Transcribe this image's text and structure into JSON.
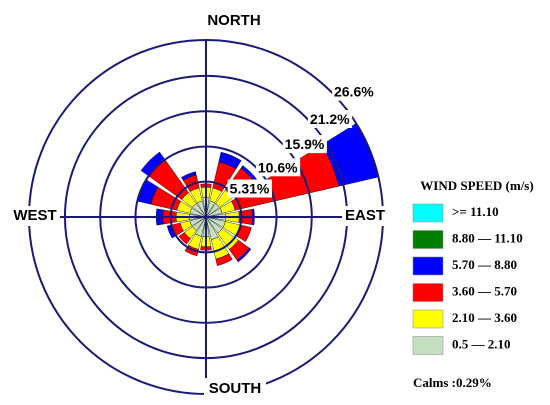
{
  "chart_data": {
    "type": "windrose",
    "legend_title": "WIND SPEED (m/s)",
    "direction_labels": {
      "north": "NORTH",
      "east": "EAST",
      "south": "SOUTH",
      "west": "WEST"
    },
    "categories": [
      null,
      null,
      null,
      null,
      null,
      null,
      null,
      null,
      null,
      null,
      null,
      null,
      null,
      null,
      null,
      null
    ],
    "series": [
      {
        "name": "0.5 — 2.10",
        "color": "#c6dfc3",
        "values": [
          3,
          2.5,
          2.5,
          2.5,
          3,
          3,
          3,
          3.5,
          3,
          3,
          2.5,
          2.5,
          2.5,
          2.5,
          2.5,
          2.5
        ]
      },
      {
        "name": "2.10 — 3.60",
        "color": "#ffff00",
        "values": [
          1.5,
          2,
          2.5,
          2,
          2,
          2.5,
          3,
          3,
          1.5,
          2,
          1.5,
          1.5,
          2,
          2,
          2,
          2
        ]
      },
      {
        "name": "3.60 — 5.70",
        "color": "#ff0000",
        "values": [
          0.5,
          4,
          4,
          16,
          2,
          1.5,
          2,
          1,
          0.5,
          1,
          1,
          1.5,
          2,
          4,
          6,
          2
        ]
      },
      {
        "name": "5.70 — 8.80",
        "color": "#0000ff",
        "values": [
          0,
          1.5,
          0.5,
          6,
          0.3,
          0,
          0.3,
          0,
          0,
          0,
          0,
          0.5,
          1,
          2,
          1.5,
          0.5
        ]
      },
      {
        "name": "8.80 — 11.10",
        "color": "#008000",
        "values": [
          0,
          0,
          0,
          0,
          0,
          0,
          0,
          0,
          0,
          0,
          0,
          0,
          0,
          0,
          0,
          0
        ]
      },
      {
        "name": ">= 11.10",
        "color": "#00ffff",
        "values": [
          0,
          0,
          0,
          0,
          0,
          0,
          0,
          0,
          0,
          0,
          0,
          0,
          0,
          0,
          0,
          0
        ]
      }
    ],
    "rlim": [
      0,
      26.6
    ],
    "rticks": [
      {
        "value": 5.31,
        "label": "5.31%"
      },
      {
        "value": 10.6,
        "label": "10.6%"
      },
      {
        "value": 15.9,
        "label": "15.9%"
      },
      {
        "value": 21.2,
        "label": "21.2%"
      },
      {
        "value": 26.6,
        "label": "26.6%"
      }
    ],
    "calms_label": "Calms :0.29%",
    "grid_color": "#1a1a7a"
  }
}
